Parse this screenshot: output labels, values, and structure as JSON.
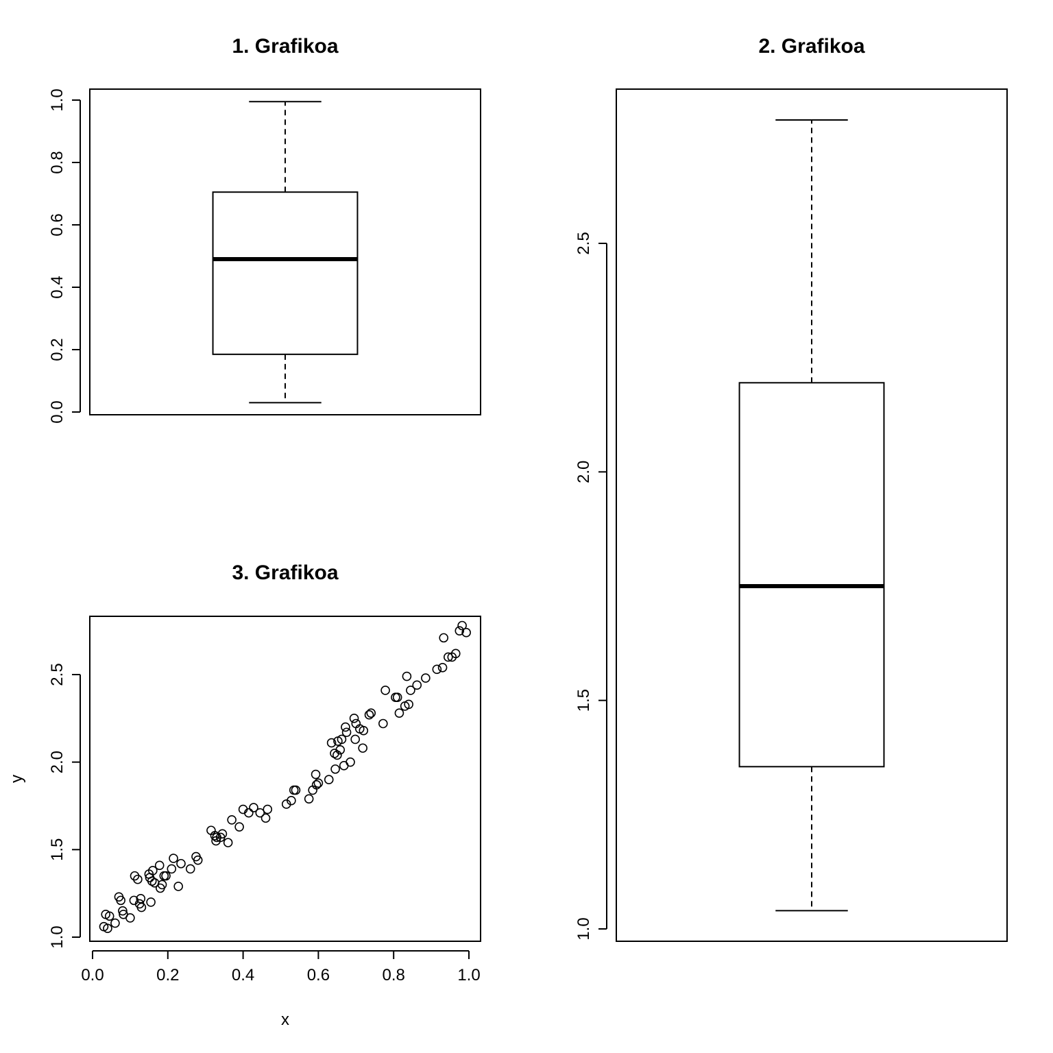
{
  "chart_data": [
    {
      "type": "boxplot",
      "title": "1. Grafikoa",
      "ylim": [
        0,
        1.0
      ],
      "yticks": [
        0.0,
        0.2,
        0.4,
        0.6,
        0.8,
        1.0
      ],
      "ytick_labels": [
        "0.0",
        "0.2",
        "0.4",
        "0.6",
        "0.8",
        "1.0"
      ],
      "box": {
        "min": 0.03,
        "q1": 0.185,
        "median": 0.49,
        "q3": 0.705,
        "max": 0.995
      }
    },
    {
      "type": "boxplot",
      "title": "2. Grafikoa",
      "ylim": [
        1.0,
        2.8
      ],
      "yticks": [
        1.0,
        1.5,
        2.0,
        2.5
      ],
      "ytick_labels": [
        "1.0",
        "1.5",
        "2.0",
        "2.5"
      ],
      "box": {
        "min": 1.04,
        "q1": 1.355,
        "median": 1.75,
        "q3": 2.195,
        "max": 2.77
      }
    },
    {
      "type": "scatter",
      "title": "3. Grafikoa",
      "xlabel": "x",
      "ylabel": "y",
      "xlim": [
        0,
        1.0
      ],
      "ylim": [
        1.0,
        2.8
      ],
      "xticks": [
        0.0,
        0.2,
        0.4,
        0.6,
        0.8,
        1.0
      ],
      "xtick_labels": [
        "0.0",
        "0.2",
        "0.4",
        "0.6",
        "0.8",
        "1.0"
      ],
      "yticks": [
        1.0,
        1.5,
        2.0,
        2.5
      ],
      "ytick_labels": [
        "1.0",
        "1.5",
        "2.0",
        "2.5"
      ],
      "points": [
        [
          0.03,
          1.06
        ],
        [
          0.035,
          1.13
        ],
        [
          0.04,
          1.05
        ],
        [
          0.045,
          1.12
        ],
        [
          0.06,
          1.08
        ],
        [
          0.07,
          1.23
        ],
        [
          0.075,
          1.21
        ],
        [
          0.08,
          1.15
        ],
        [
          0.082,
          1.13
        ],
        [
          0.1,
          1.11
        ],
        [
          0.11,
          1.21
        ],
        [
          0.112,
          1.35
        ],
        [
          0.12,
          1.33
        ],
        [
          0.125,
          1.19
        ],
        [
          0.128,
          1.22
        ],
        [
          0.13,
          1.17
        ],
        [
          0.15,
          1.36
        ],
        [
          0.152,
          1.34
        ],
        [
          0.155,
          1.2
        ],
        [
          0.158,
          1.32
        ],
        [
          0.16,
          1.38
        ],
        [
          0.165,
          1.31
        ],
        [
          0.178,
          1.41
        ],
        [
          0.18,
          1.28
        ],
        [
          0.185,
          1.3
        ],
        [
          0.19,
          1.35
        ],
        [
          0.195,
          1.35
        ],
        [
          0.21,
          1.39
        ],
        [
          0.215,
          1.45
        ],
        [
          0.228,
          1.29
        ],
        [
          0.235,
          1.42
        ],
        [
          0.26,
          1.39
        ],
        [
          0.275,
          1.46
        ],
        [
          0.28,
          1.44
        ],
        [
          0.315,
          1.61
        ],
        [
          0.325,
          1.58
        ],
        [
          0.328,
          1.55
        ],
        [
          0.33,
          1.57
        ],
        [
          0.34,
          1.57
        ],
        [
          0.345,
          1.59
        ],
        [
          0.36,
          1.54
        ],
        [
          0.37,
          1.67
        ],
        [
          0.39,
          1.63
        ],
        [
          0.4,
          1.73
        ],
        [
          0.415,
          1.71
        ],
        [
          0.428,
          1.74
        ],
        [
          0.445,
          1.71
        ],
        [
          0.46,
          1.68
        ],
        [
          0.465,
          1.73
        ],
        [
          0.515,
          1.76
        ],
        [
          0.528,
          1.78
        ],
        [
          0.535,
          1.84
        ],
        [
          0.54,
          1.84
        ],
        [
          0.575,
          1.79
        ],
        [
          0.585,
          1.84
        ],
        [
          0.593,
          1.93
        ],
        [
          0.595,
          1.87
        ],
        [
          0.6,
          1.88
        ],
        [
          0.628,
          1.9
        ],
        [
          0.635,
          2.11
        ],
        [
          0.643,
          2.05
        ],
        [
          0.645,
          1.96
        ],
        [
          0.65,
          2.04
        ],
        [
          0.652,
          2.12
        ],
        [
          0.658,
          2.07
        ],
        [
          0.662,
          2.13
        ],
        [
          0.668,
          1.98
        ],
        [
          0.672,
          2.2
        ],
        [
          0.675,
          2.17
        ],
        [
          0.685,
          2.0
        ],
        [
          0.695,
          2.25
        ],
        [
          0.698,
          2.13
        ],
        [
          0.7,
          2.22
        ],
        [
          0.71,
          2.19
        ],
        [
          0.718,
          2.08
        ],
        [
          0.72,
          2.18
        ],
        [
          0.735,
          2.27
        ],
        [
          0.74,
          2.28
        ],
        [
          0.772,
          2.22
        ],
        [
          0.778,
          2.41
        ],
        [
          0.805,
          2.37
        ],
        [
          0.81,
          2.37
        ],
        [
          0.815,
          2.28
        ],
        [
          0.83,
          2.32
        ],
        [
          0.835,
          2.49
        ],
        [
          0.84,
          2.33
        ],
        [
          0.845,
          2.41
        ],
        [
          0.862,
          2.44
        ],
        [
          0.885,
          2.48
        ],
        [
          0.915,
          2.53
        ],
        [
          0.93,
          2.54
        ],
        [
          0.933,
          2.71
        ],
        [
          0.945,
          2.6
        ],
        [
          0.955,
          2.6
        ],
        [
          0.965,
          2.62
        ],
        [
          0.975,
          2.75
        ],
        [
          0.982,
          2.78
        ],
        [
          0.993,
          2.74
        ]
      ]
    }
  ]
}
